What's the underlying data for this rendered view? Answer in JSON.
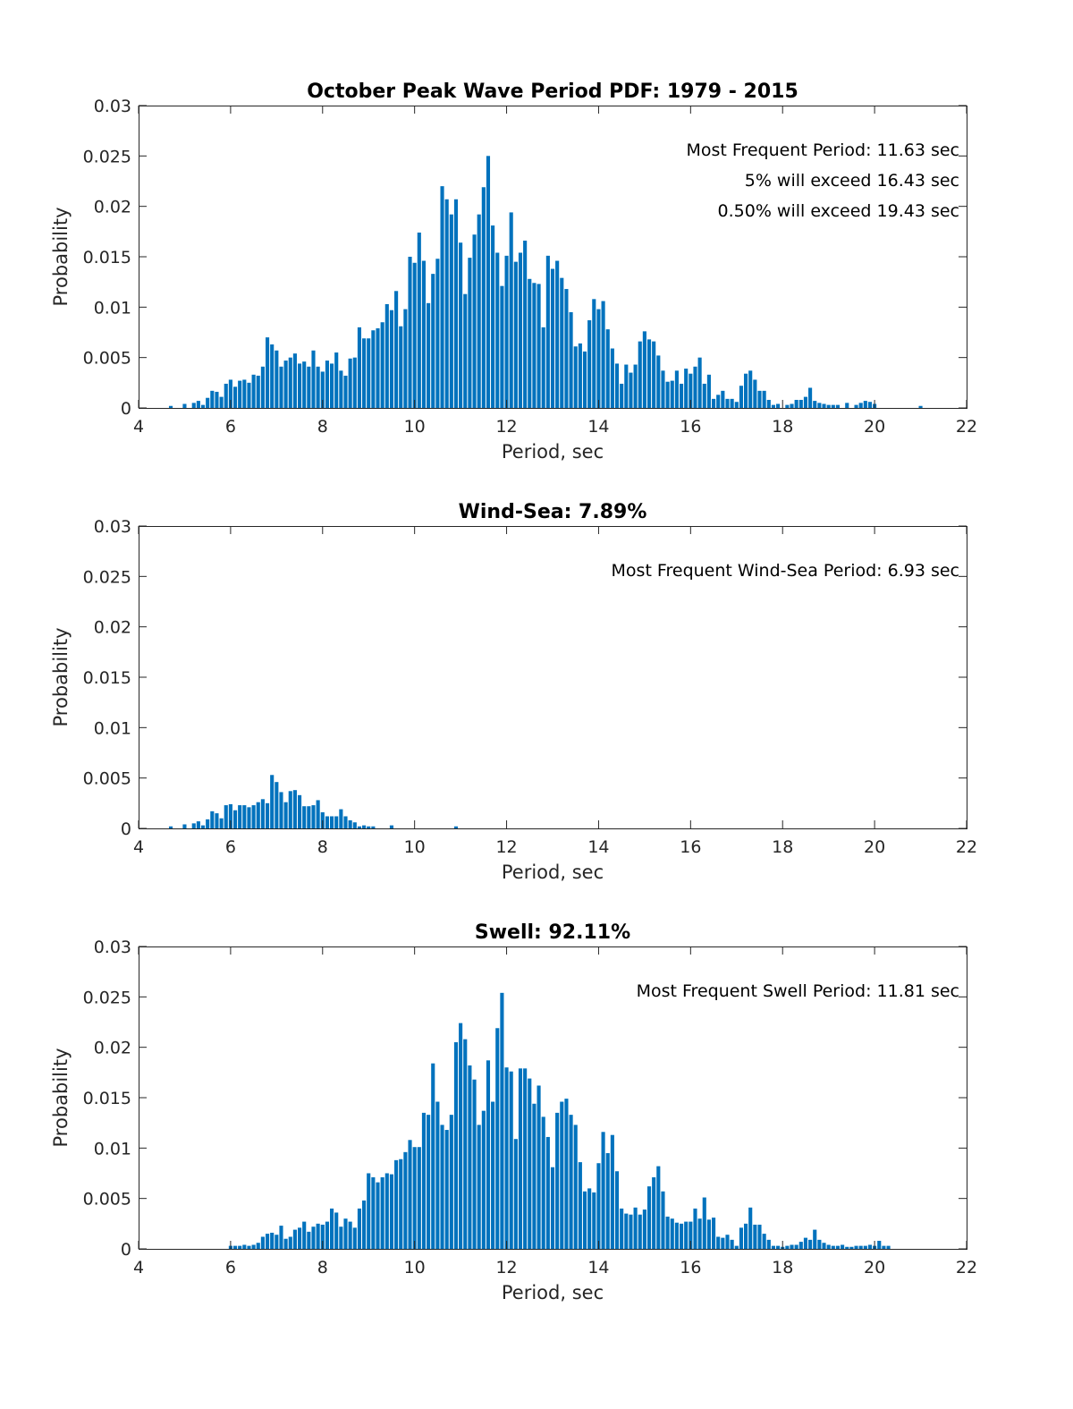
{
  "chart_data": [
    {
      "type": "bar",
      "title": "October Peak Wave Period PDF: 1979 - 2015",
      "xlabel": "Period, sec",
      "ylabel": "Probability",
      "xlim": [
        4,
        22
      ],
      "ylim": [
        0,
        0.03
      ],
      "xticks": [
        "4",
        "6",
        "8",
        "10",
        "12",
        "14",
        "16",
        "18",
        "20",
        "22"
      ],
      "yticks": [
        "0",
        "0.005",
        "0.01",
        "0.015",
        "0.02",
        "0.025",
        "0.03"
      ],
      "annotations": [
        "Most Frequent Period: 11.63 sec",
        "5% will exceed 16.43 sec",
        "0.50% will exceed 19.43 sec"
      ],
      "bin_start": 4.7,
      "bin_width": 0.1,
      "values": [
        0.0002,
        0,
        0,
        0.0004,
        0,
        0.0005,
        0.0007,
        0.0003,
        0.001,
        0.0017,
        0.0016,
        0.0011,
        0.0024,
        0.0028,
        0.0021,
        0.0027,
        0.0028,
        0.0025,
        0.0033,
        0.0032,
        0.0041,
        0.007,
        0.0063,
        0.0057,
        0.0041,
        0.0047,
        0.005,
        0.0054,
        0.0044,
        0.0046,
        0.0041,
        0.0057,
        0.0041,
        0.0036,
        0.0047,
        0.0044,
        0.0055,
        0.0037,
        0.0032,
        0.0049,
        0.005,
        0.008,
        0.0069,
        0.0069,
        0.0077,
        0.0079,
        0.0085,
        0.0103,
        0.0097,
        0.0116,
        0.0081,
        0.0098,
        0.015,
        0.0144,
        0.0174,
        0.0146,
        0.0104,
        0.0133,
        0.0148,
        0.022,
        0.0207,
        0.0192,
        0.0207,
        0.0164,
        0.0113,
        0.0149,
        0.0172,
        0.0192,
        0.0219,
        0.025,
        0.0181,
        0.0154,
        0.0121,
        0.0151,
        0.0194,
        0.0145,
        0.0154,
        0.0166,
        0.0128,
        0.0124,
        0.0123,
        0.008,
        0.0151,
        0.0138,
        0.0146,
        0.0129,
        0.0118,
        0.0095,
        0.0061,
        0.0064,
        0.0056,
        0.0087,
        0.0108,
        0.0098,
        0.0106,
        0.0078,
        0.0059,
        0.0044,
        0.0024,
        0.0043,
        0.0035,
        0.0043,
        0.0066,
        0.0076,
        0.0068,
        0.0066,
        0.0052,
        0.0037,
        0.0026,
        0.0027,
        0.0037,
        0.0024,
        0.0039,
        0.0034,
        0.0041,
        0.005,
        0.0024,
        0.0033,
        0.0009,
        0.0013,
        0.0017,
        0.0009,
        0.0009,
        0.0006,
        0.0022,
        0.0034,
        0.0037,
        0.0028,
        0.0017,
        0.0017,
        0.0008,
        0.0003,
        0.0004,
        0,
        0.0003,
        0.0004,
        0.0008,
        0.0008,
        0.0011,
        0.002,
        0.0007,
        0.0005,
        0.0004,
        0.0003,
        0.0003,
        0.0003,
        0,
        0.0005,
        0,
        0.0003,
        0.0005,
        0.0007,
        0.0006,
        0.0004,
        0,
        0,
        0,
        0,
        0,
        0,
        0,
        0,
        0,
        0.0002
      ]
    },
    {
      "type": "bar",
      "title": "Wind-Sea: 7.89%",
      "xlabel": "Period, sec",
      "ylabel": "Probability",
      "xlim": [
        4,
        22
      ],
      "ylim": [
        0,
        0.03
      ],
      "xticks": [
        "4",
        "6",
        "8",
        "10",
        "12",
        "14",
        "16",
        "18",
        "20",
        "22"
      ],
      "yticks": [
        "0",
        "0.005",
        "0.01",
        "0.015",
        "0.02",
        "0.025",
        "0.03"
      ],
      "annotations": [
        "Most Frequent Wind-Sea Period: 6.93 sec"
      ],
      "bin_start": 4.7,
      "bin_width": 0.1,
      "values": [
        0.0002,
        0,
        0,
        0.0004,
        0,
        0.0005,
        0.0007,
        0.0003,
        0.0009,
        0.0017,
        0.0015,
        0.001,
        0.0023,
        0.0024,
        0.0018,
        0.0023,
        0.0023,
        0.0021,
        0.0023,
        0.0026,
        0.0029,
        0.0025,
        0.0053,
        0.0046,
        0.0036,
        0.0026,
        0.0037,
        0.0038,
        0.0033,
        0.0022,
        0.0022,
        0.0023,
        0.0028,
        0.0016,
        0.0012,
        0.0012,
        0.0012,
        0.0019,
        0.0012,
        0.0008,
        0.0006,
        0.0002,
        0.0003,
        0.0002,
        0.0002,
        0,
        0,
        0,
        0.0003,
        0,
        0,
        0,
        0,
        0,
        0,
        0,
        0,
        0,
        0,
        0,
        0,
        0,
        0.0002
      ]
    },
    {
      "type": "bar",
      "title": "Swell: 92.11%",
      "xlabel": "Period, sec",
      "ylabel": "Probability",
      "xlim": [
        4,
        22
      ],
      "ylim": [
        0,
        0.03
      ],
      "xticks": [
        "4",
        "6",
        "8",
        "10",
        "12",
        "14",
        "16",
        "18",
        "20",
        "22"
      ],
      "yticks": [
        "0",
        "0.005",
        "0.01",
        "0.015",
        "0.02",
        "0.025",
        "0.03"
      ],
      "annotations": [
        "Most Frequent Swell Period: 11.81 sec"
      ],
      "bin_start": 6.0,
      "bin_width": 0.1,
      "values": [
        0.0003,
        0.0003,
        0.0003,
        0.0004,
        0.0003,
        0.0004,
        0.0006,
        0.0012,
        0.0015,
        0.0016,
        0.0014,
        0.0023,
        0.001,
        0.0012,
        0.0019,
        0.0021,
        0.0027,
        0.0017,
        0.0022,
        0.0025,
        0.0024,
        0.0027,
        0.004,
        0.0036,
        0.0022,
        0.003,
        0.0027,
        0.0021,
        0.004,
        0.0048,
        0.0075,
        0.0071,
        0.0066,
        0.0071,
        0.0075,
        0.0074,
        0.0088,
        0.0089,
        0.0096,
        0.0108,
        0.0101,
        0.0101,
        0.0135,
        0.0133,
        0.0184,
        0.0146,
        0.0123,
        0.0118,
        0.0133,
        0.0205,
        0.0224,
        0.0208,
        0.0182,
        0.0168,
        0.0123,
        0.0137,
        0.0187,
        0.0146,
        0.0219,
        0.0254,
        0.018,
        0.0176,
        0.0109,
        0.0179,
        0.0179,
        0.0169,
        0.0144,
        0.0162,
        0.0131,
        0.0111,
        0.0081,
        0.0135,
        0.0146,
        0.0149,
        0.0133,
        0.0123,
        0.0086,
        0.0057,
        0.006,
        0.0056,
        0.0085,
        0.0116,
        0.0095,
        0.0113,
        0.0077,
        0.004,
        0.0035,
        0.0034,
        0.0041,
        0.0034,
        0.0039,
        0.0062,
        0.0071,
        0.0082,
        0.0057,
        0.0032,
        0.003,
        0.0026,
        0.0025,
        0.0027,
        0.0027,
        0.004,
        0.003,
        0.0051,
        0.0029,
        0.0031,
        0.0012,
        0.0011,
        0.0014,
        0.0009,
        0.0003,
        0.0021,
        0.0025,
        0.0041,
        0.0024,
        0.0024,
        0.0015,
        0.0009,
        0.0003,
        0.0003,
        0.0002,
        0.0003,
        0.0004,
        0.0004,
        0.0007,
        0.0011,
        0.0009,
        0.0019,
        0.0009,
        0.0006,
        0.0004,
        0.0003,
        0.0003,
        0.0004,
        0.0002,
        0.0002,
        0.0003,
        0.0003,
        0.0003,
        0.0004,
        0.0003,
        0.0008,
        0.0003,
        0.0003
      ]
    }
  ]
}
